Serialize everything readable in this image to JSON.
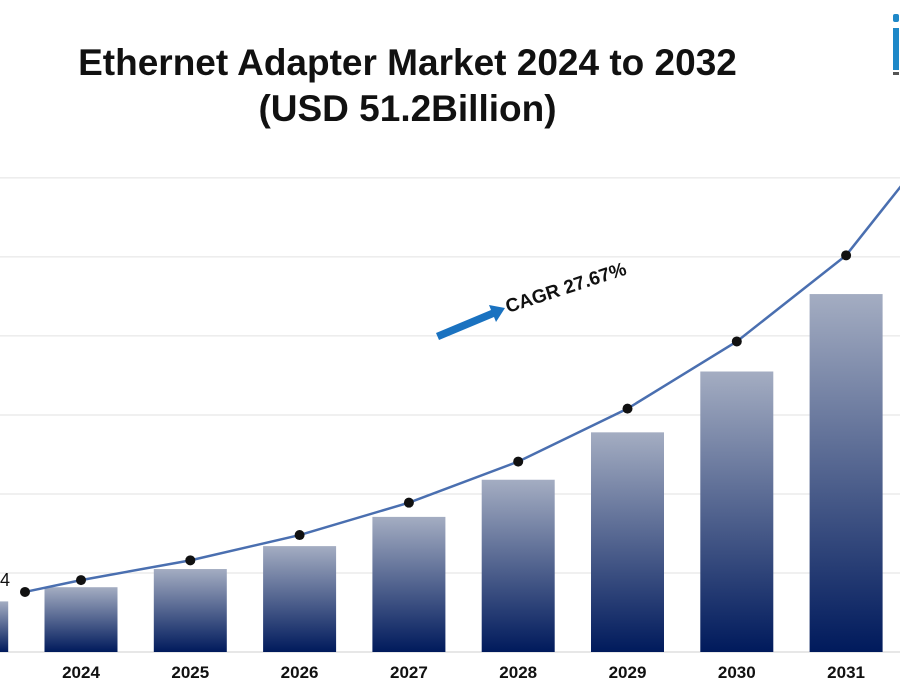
{
  "title": "Ethernet Adapter Market 2024 to 2032",
  "subtitle": "(USD 51.2Billion)",
  "logo_icon": "company-logo-icon",
  "chart_data": {
    "type": "bar",
    "categories": [
      "2024",
      "2025",
      "2026",
      "2027",
      "2028",
      "2029",
      "2030",
      "2031"
    ],
    "series": [
      {
        "values": [
          8.2,
          10.5,
          13.4,
          17.1,
          21.8,
          27.8,
          35.5,
          45.3
        ]
      }
    ],
    "trend_line": {
      "values": [
        9.1,
        11.6,
        14.8,
        18.9,
        24.1,
        30.8,
        39.3,
        50.2
      ]
    },
    "edge_label": "4",
    "annotation": "CAGR 27.67%",
    "ylim": [
      0,
      61
    ],
    "grid": true,
    "bar_gradient": [
      "#a4adc2",
      "#001a5c"
    ],
    "line_color": "#4a6fb0",
    "arrow_color": "#1a72c0"
  }
}
